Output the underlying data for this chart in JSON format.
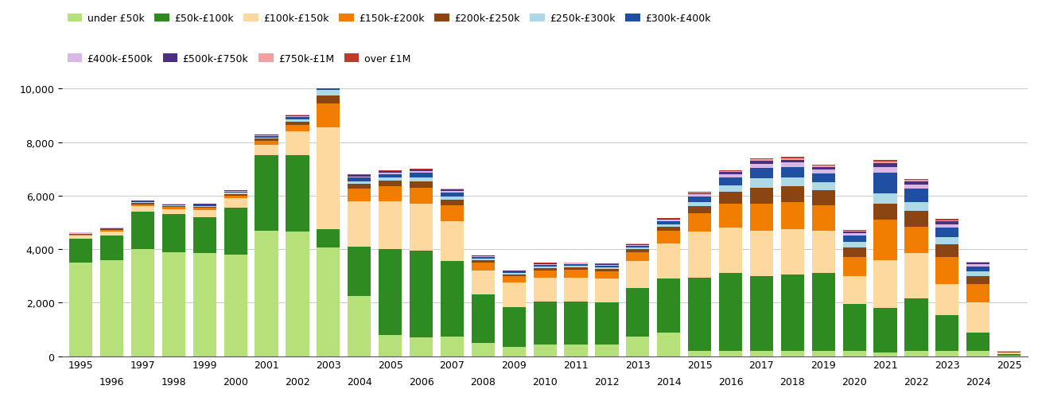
{
  "years": [
    1995,
    1996,
    1997,
    1998,
    1999,
    2000,
    2001,
    2002,
    2003,
    2004,
    2005,
    2006,
    2007,
    2008,
    2009,
    2010,
    2011,
    2012,
    2013,
    2014,
    2015,
    2016,
    2017,
    2018,
    2019,
    2020,
    2021,
    2022,
    2023,
    2024,
    2025
  ],
  "categories": [
    "under £50k",
    "£50k-£100k",
    "£100k-£150k",
    "£150k-£200k",
    "£200k-£250k",
    "£250k-£300k",
    "£300k-£400k",
    "£400k-£500k",
    "£500k-£750k",
    "£750k-£1M",
    "over £1M"
  ],
  "colors": [
    "#b5e07a",
    "#2e8b22",
    "#fdd9a0",
    "#f07d00",
    "#8b4513",
    "#add8e6",
    "#1e4fa0",
    "#d9b8e8",
    "#4b3080",
    "#f4a0a0",
    "#c0392b"
  ],
  "data": {
    "under £50k": [
      3500,
      3600,
      4000,
      3900,
      3850,
      3800,
      4700,
      4650,
      4050,
      2250,
      800,
      700,
      750,
      500,
      350,
      430,
      440,
      450,
      750,
      900,
      200,
      200,
      200,
      200,
      200,
      200,
      150,
      200,
      200,
      200,
      30
    ],
    "£50k-£100k": [
      900,
      900,
      1400,
      1400,
      1350,
      1750,
      2800,
      2850,
      700,
      1850,
      3200,
      3250,
      2800,
      1800,
      1500,
      1600,
      1600,
      1550,
      1800,
      2000,
      2750,
      2900,
      2800,
      2850,
      2900,
      1750,
      1650,
      1950,
      1350,
      700,
      50
    ],
    "£100k-£150k": [
      100,
      150,
      200,
      200,
      250,
      350,
      400,
      900,
      3800,
      1700,
      1800,
      1750,
      1500,
      900,
      900,
      900,
      900,
      900,
      1000,
      1300,
      1700,
      1700,
      1700,
      1700,
      1600,
      1050,
      1800,
      1700,
      1150,
      1100,
      50
    ],
    "£150k-£200k": [
      50,
      60,
      80,
      80,
      90,
      100,
      150,
      250,
      900,
      450,
      550,
      600,
      600,
      300,
      230,
      280,
      280,
      280,
      340,
      500,
      700,
      900,
      1000,
      1000,
      950,
      700,
      1500,
      1000,
      1000,
      700,
      25
    ],
    "£200k-£250k": [
      25,
      30,
      40,
      40,
      50,
      60,
      70,
      120,
      300,
      180,
      200,
      230,
      200,
      90,
      75,
      90,
      90,
      90,
      105,
      145,
      250,
      450,
      600,
      600,
      550,
      350,
      600,
      580,
      480,
      280,
      12
    ],
    "£250k-£300k": [
      15,
      18,
      25,
      25,
      30,
      40,
      50,
      70,
      200,
      110,
      120,
      145,
      130,
      60,
      50,
      60,
      60,
      60,
      65,
      95,
      170,
      240,
      340,
      340,
      295,
      210,
      390,
      340,
      285,
      185,
      8
    ],
    "£300k-£400k": [
      20,
      25,
      35,
      35,
      40,
      55,
      65,
      95,
      220,
      130,
      140,
      170,
      145,
      65,
      55,
      65,
      65,
      65,
      75,
      115,
      195,
      290,
      385,
      385,
      340,
      240,
      780,
      490,
      340,
      190,
      9
    ],
    "£400k-£500k": [
      8,
      10,
      14,
      14,
      16,
      22,
      26,
      38,
      90,
      52,
      58,
      68,
      60,
      26,
      22,
      26,
      26,
      26,
      30,
      44,
      78,
      115,
      155,
      155,
      135,
      95,
      195,
      155,
      135,
      78,
      4
    ],
    "£500k-£750k": [
      6,
      7,
      10,
      10,
      12,
      16,
      19,
      27,
      65,
      37,
      42,
      49,
      43,
      19,
      16,
      19,
      19,
      19,
      22,
      32,
      56,
      83,
      112,
      112,
      97,
      68,
      140,
      112,
      97,
      56,
      3
    ],
    "£750k-£1M": [
      3,
      4,
      5,
      5,
      6,
      8,
      10,
      14,
      32,
      18,
      21,
      24,
      21,
      9,
      8,
      9,
      9,
      9,
      11,
      16,
      28,
      41,
      56,
      56,
      49,
      34,
      70,
      56,
      49,
      28,
      2
    ],
    "over £1M": [
      2,
      3,
      4,
      4,
      5,
      6,
      7,
      10,
      22,
      13,
      15,
      17,
      15,
      7,
      6,
      7,
      7,
      7,
      8,
      12,
      20,
      30,
      40,
      40,
      35,
      24,
      50,
      40,
      35,
      20,
      1
    ]
  },
  "ylim": [
    0,
    10000
  ],
  "yticks": [
    0,
    2000,
    4000,
    6000,
    8000,
    10000
  ],
  "background_color": "#ffffff",
  "grid_color": "#cccccc",
  "legend_row1": [
    "under £50k",
    "£50k-£100k",
    "£100k-£150k",
    "£150k-£200k",
    "£200k-£250k",
    "£250k-£300k",
    "£300k-£400k"
  ],
  "legend_row2": [
    "£400k-£500k",
    "£500k-£750k",
    "£750k-£1M",
    "over £1M"
  ]
}
